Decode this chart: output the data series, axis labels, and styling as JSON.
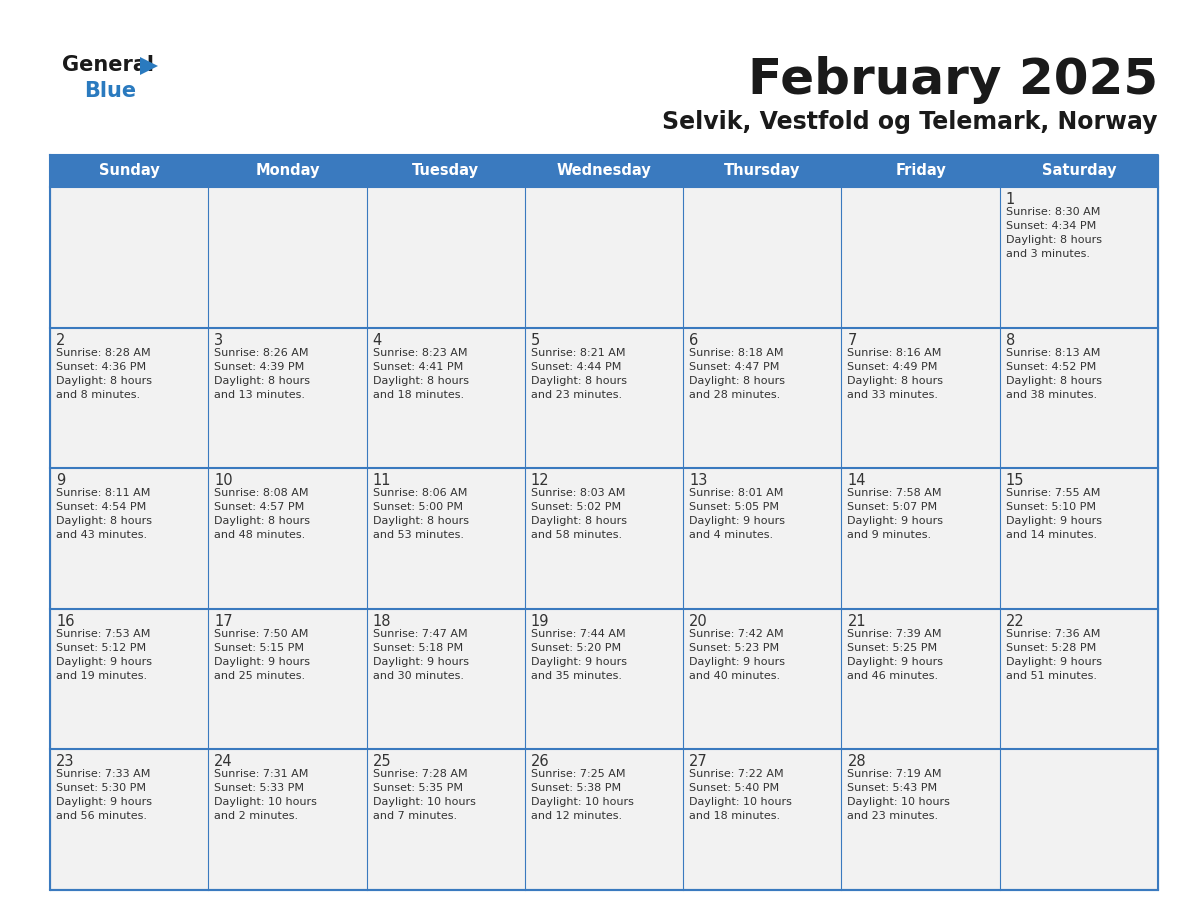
{
  "title": "February 2025",
  "subtitle": "Selvik, Vestfold og Telemark, Norway",
  "header_bg": "#3a7abf",
  "header_text_color": "#ffffff",
  "cell_bg": "#f2f2f2",
  "border_color": "#3a7abf",
  "text_color": "#333333",
  "day_headers": [
    "Sunday",
    "Monday",
    "Tuesday",
    "Wednesday",
    "Thursday",
    "Friday",
    "Saturday"
  ],
  "days": [
    {
      "day": 1,
      "col": 6,
      "row": 0,
      "sunrise": "8:30 AM",
      "sunset": "4:34 PM",
      "daylight_h": "8",
      "daylight_m": "3"
    },
    {
      "day": 2,
      "col": 0,
      "row": 1,
      "sunrise": "8:28 AM",
      "sunset": "4:36 PM",
      "daylight_h": "8",
      "daylight_m": "8"
    },
    {
      "day": 3,
      "col": 1,
      "row": 1,
      "sunrise": "8:26 AM",
      "sunset": "4:39 PM",
      "daylight_h": "8",
      "daylight_m": "13"
    },
    {
      "day": 4,
      "col": 2,
      "row": 1,
      "sunrise": "8:23 AM",
      "sunset": "4:41 PM",
      "daylight_h": "8",
      "daylight_m": "18"
    },
    {
      "day": 5,
      "col": 3,
      "row": 1,
      "sunrise": "8:21 AM",
      "sunset": "4:44 PM",
      "daylight_h": "8",
      "daylight_m": "23"
    },
    {
      "day": 6,
      "col": 4,
      "row": 1,
      "sunrise": "8:18 AM",
      "sunset": "4:47 PM",
      "daylight_h": "8",
      "daylight_m": "28"
    },
    {
      "day": 7,
      "col": 5,
      "row": 1,
      "sunrise": "8:16 AM",
      "sunset": "4:49 PM",
      "daylight_h": "8",
      "daylight_m": "33"
    },
    {
      "day": 8,
      "col": 6,
      "row": 1,
      "sunrise": "8:13 AM",
      "sunset": "4:52 PM",
      "daylight_h": "8",
      "daylight_m": "38"
    },
    {
      "day": 9,
      "col": 0,
      "row": 2,
      "sunrise": "8:11 AM",
      "sunset": "4:54 PM",
      "daylight_h": "8",
      "daylight_m": "43"
    },
    {
      "day": 10,
      "col": 1,
      "row": 2,
      "sunrise": "8:08 AM",
      "sunset": "4:57 PM",
      "daylight_h": "8",
      "daylight_m": "48"
    },
    {
      "day": 11,
      "col": 2,
      "row": 2,
      "sunrise": "8:06 AM",
      "sunset": "5:00 PM",
      "daylight_h": "8",
      "daylight_m": "53"
    },
    {
      "day": 12,
      "col": 3,
      "row": 2,
      "sunrise": "8:03 AM",
      "sunset": "5:02 PM",
      "daylight_h": "8",
      "daylight_m": "58"
    },
    {
      "day": 13,
      "col": 4,
      "row": 2,
      "sunrise": "8:01 AM",
      "sunset": "5:05 PM",
      "daylight_h": "9",
      "daylight_m": "4"
    },
    {
      "day": 14,
      "col": 5,
      "row": 2,
      "sunrise": "7:58 AM",
      "sunset": "5:07 PM",
      "daylight_h": "9",
      "daylight_m": "9"
    },
    {
      "day": 15,
      "col": 6,
      "row": 2,
      "sunrise": "7:55 AM",
      "sunset": "5:10 PM",
      "daylight_h": "9",
      "daylight_m": "14"
    },
    {
      "day": 16,
      "col": 0,
      "row": 3,
      "sunrise": "7:53 AM",
      "sunset": "5:12 PM",
      "daylight_h": "9",
      "daylight_m": "19"
    },
    {
      "day": 17,
      "col": 1,
      "row": 3,
      "sunrise": "7:50 AM",
      "sunset": "5:15 PM",
      "daylight_h": "9",
      "daylight_m": "25"
    },
    {
      "day": 18,
      "col": 2,
      "row": 3,
      "sunrise": "7:47 AM",
      "sunset": "5:18 PM",
      "daylight_h": "9",
      "daylight_m": "30"
    },
    {
      "day": 19,
      "col": 3,
      "row": 3,
      "sunrise": "7:44 AM",
      "sunset": "5:20 PM",
      "daylight_h": "9",
      "daylight_m": "35"
    },
    {
      "day": 20,
      "col": 4,
      "row": 3,
      "sunrise": "7:42 AM",
      "sunset": "5:23 PM",
      "daylight_h": "9",
      "daylight_m": "40"
    },
    {
      "day": 21,
      "col": 5,
      "row": 3,
      "sunrise": "7:39 AM",
      "sunset": "5:25 PM",
      "daylight_h": "9",
      "daylight_m": "46"
    },
    {
      "day": 22,
      "col": 6,
      "row": 3,
      "sunrise": "7:36 AM",
      "sunset": "5:28 PM",
      "daylight_h": "9",
      "daylight_m": "51"
    },
    {
      "day": 23,
      "col": 0,
      "row": 4,
      "sunrise": "7:33 AM",
      "sunset": "5:30 PM",
      "daylight_h": "9",
      "daylight_m": "56"
    },
    {
      "day": 24,
      "col": 1,
      "row": 4,
      "sunrise": "7:31 AM",
      "sunset": "5:33 PM",
      "daylight_h": "10",
      "daylight_m": "2"
    },
    {
      "day": 25,
      "col": 2,
      "row": 4,
      "sunrise": "7:28 AM",
      "sunset": "5:35 PM",
      "daylight_h": "10",
      "daylight_m": "7"
    },
    {
      "day": 26,
      "col": 3,
      "row": 4,
      "sunrise": "7:25 AM",
      "sunset": "5:38 PM",
      "daylight_h": "10",
      "daylight_m": "12"
    },
    {
      "day": 27,
      "col": 4,
      "row": 4,
      "sunrise": "7:22 AM",
      "sunset": "5:40 PM",
      "daylight_h": "10",
      "daylight_m": "18"
    },
    {
      "day": 28,
      "col": 5,
      "row": 4,
      "sunrise": "7:19 AM",
      "sunset": "5:43 PM",
      "daylight_h": "10",
      "daylight_m": "23"
    }
  ]
}
